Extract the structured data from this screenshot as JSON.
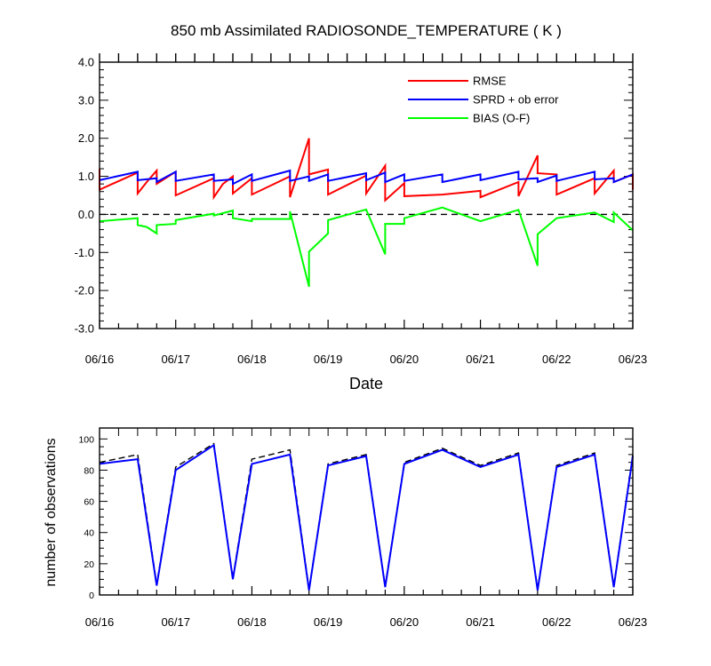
{
  "chart_data": [
    {
      "type": "line",
      "title": "850 mb Assimilated RADIOSONDE_TEMPERATURE ( K )",
      "xlabel": "Date",
      "ylabel": "",
      "xlim": [
        0,
        7
      ],
      "ylim": [
        -3,
        4
      ],
      "x_tick_labels": [
        "06/16",
        "06/17",
        "06/18",
        "06/19",
        "06/20",
        "06/21",
        "06/22",
        "06/23"
      ],
      "y_tick_labels": [
        "4.0",
        "3.0",
        "2.0",
        "1.0",
        "0.0",
        "-1.0",
        "-2.0",
        "-3.0"
      ],
      "legend": {
        "position": "top-right",
        "entries": [
          "RMSE",
          "SPRD + ob error",
          "BIAS (O-F)"
        ]
      },
      "colors": {
        "RMSE": "#ff0000",
        "SPRD": "#0000ff",
        "BIAS": "#00ff00",
        "zero_line": "#000000"
      },
      "series": [
        {
          "name": "RMSE",
          "points": [
            [
              0,
              1.2
            ],
            [
              0,
              0.65
            ],
            [
              0.5,
              1.1
            ],
            [
              0.5,
              0.55
            ],
            [
              0.62,
              0.85
            ],
            [
              0.75,
              1.15
            ],
            [
              0.75,
              0.8
            ],
            [
              1,
              1.12
            ],
            [
              1,
              0.5
            ],
            [
              1.5,
              0.95
            ],
            [
              1.5,
              0.45
            ],
            [
              1.62,
              0.8
            ],
            [
              1.75,
              1.0
            ],
            [
              1.75,
              0.55
            ],
            [
              2,
              0.95
            ],
            [
              2,
              0.52
            ],
            [
              2.5,
              1.0
            ],
            [
              2.5,
              0.45
            ],
            [
              2.75,
              2.0
            ],
            [
              2.75,
              1.05
            ],
            [
              3,
              1.18
            ],
            [
              3,
              0.52
            ],
            [
              3.5,
              1.02
            ],
            [
              3.5,
              0.55
            ],
            [
              3.75,
              1.28
            ],
            [
              3.75,
              0.37
            ],
            [
              4,
              0.82
            ],
            [
              4,
              0.48
            ],
            [
              4.5,
              0.52
            ],
            [
              5,
              0.62
            ],
            [
              5,
              0.45
            ],
            [
              5.5,
              0.85
            ],
            [
              5.5,
              0.48
            ],
            [
              5.75,
              1.55
            ],
            [
              5.75,
              1.08
            ],
            [
              6,
              1.05
            ],
            [
              6,
              0.52
            ],
            [
              6.5,
              0.95
            ],
            [
              6.5,
              0.55
            ],
            [
              6.75,
              1.15
            ],
            [
              6.75,
              0.85
            ],
            [
              7,
              1.05
            ],
            [
              7,
              0.65
            ]
          ]
        },
        {
          "name": "SPRD + ob error",
          "points": [
            [
              0,
              0.9
            ],
            [
              0.5,
              1.12
            ],
            [
              0.5,
              0.9
            ],
            [
              0.75,
              0.95
            ],
            [
              0.75,
              0.85
            ],
            [
              1,
              1.12
            ],
            [
              1,
              0.88
            ],
            [
              1.5,
              1.05
            ],
            [
              1.5,
              0.88
            ],
            [
              1.75,
              0.92
            ],
            [
              1.75,
              0.8
            ],
            [
              2,
              1.05
            ],
            [
              2,
              0.88
            ],
            [
              2.5,
              1.15
            ],
            [
              2.5,
              0.88
            ],
            [
              2.75,
              1.0
            ],
            [
              2.75,
              0.88
            ],
            [
              3,
              1.05
            ],
            [
              3,
              0.88
            ],
            [
              3.5,
              1.08
            ],
            [
              3.5,
              0.9
            ],
            [
              3.75,
              1.1
            ],
            [
              3.75,
              0.85
            ],
            [
              4,
              1.05
            ],
            [
              4,
              0.88
            ],
            [
              4.5,
              1.05
            ],
            [
              4.5,
              0.85
            ],
            [
              5,
              1.05
            ],
            [
              5,
              0.9
            ],
            [
              5.5,
              1.12
            ],
            [
              5.5,
              0.92
            ],
            [
              5.75,
              0.95
            ],
            [
              5.75,
              0.85
            ],
            [
              6,
              1.02
            ],
            [
              6,
              0.88
            ],
            [
              6.5,
              1.12
            ],
            [
              6.5,
              0.92
            ],
            [
              6.75,
              0.95
            ],
            [
              6.75,
              0.85
            ],
            [
              7,
              1.05
            ]
          ]
        },
        {
          "name": "BIAS (O-F)",
          "points": [
            [
              0,
              -0.18
            ],
            [
              0.5,
              -0.1
            ],
            [
              0.5,
              -0.28
            ],
            [
              0.62,
              -0.33
            ],
            [
              0.75,
              -0.5
            ],
            [
              0.75,
              -0.28
            ],
            [
              1,
              -0.25
            ],
            [
              1,
              -0.15
            ],
            [
              1.5,
              0.02
            ],
            [
              1.5,
              -0.03
            ],
            [
              1.75,
              0.1
            ],
            [
              1.75,
              -0.1
            ],
            [
              2,
              -0.18
            ],
            [
              2,
              -0.12
            ],
            [
              2.5,
              -0.12
            ],
            [
              2.5,
              0.08
            ],
            [
              2.75,
              -1.9
            ],
            [
              2.75,
              -0.98
            ],
            [
              3,
              -0.5
            ],
            [
              3,
              -0.15
            ],
            [
              3.5,
              0.13
            ],
            [
              3.75,
              -1.05
            ],
            [
              3.75,
              -0.25
            ],
            [
              4,
              -0.25
            ],
            [
              4,
              -0.1
            ],
            [
              4.5,
              0.18
            ],
            [
              5,
              -0.18
            ],
            [
              5.5,
              0.12
            ],
            [
              5.75,
              -1.35
            ],
            [
              5.75,
              -0.52
            ],
            [
              6,
              -0.1
            ],
            [
              6.5,
              0.05
            ],
            [
              6.75,
              -0.2
            ],
            [
              6.75,
              0.05
            ],
            [
              7,
              -0.42
            ]
          ]
        }
      ],
      "reference_lines": [
        {
          "y": 0,
          "style": "dashed"
        }
      ]
    },
    {
      "type": "line",
      "title": "",
      "xlabel": "",
      "ylabel": "number of observations",
      "xlim": [
        0,
        7
      ],
      "ylim": [
        0,
        107
      ],
      "x_tick_labels": [
        "06/16",
        "06/17",
        "06/18",
        "06/19",
        "06/20",
        "06/21",
        "06/22",
        "06/23"
      ],
      "y_tick_labels": [
        "100",
        "80",
        "60",
        "40",
        "20",
        "0"
      ],
      "colors": {
        "assimilated": "#0000ff",
        "total": "#000000"
      },
      "series": [
        {
          "name": "assimilated",
          "style": "solid",
          "points": [
            [
              0,
              84
            ],
            [
              0.5,
              87
            ],
            [
              0.75,
              6
            ],
            [
              1,
              80
            ],
            [
              1.5,
              96
            ],
            [
              1.75,
              10
            ],
            [
              2,
              84
            ],
            [
              2.5,
              90
            ],
            [
              2.75,
              3
            ],
            [
              3,
              83
            ],
            [
              3.5,
              89
            ],
            [
              3.75,
              5
            ],
            [
              4,
              84
            ],
            [
              4.5,
              93
            ],
            [
              5,
              82
            ],
            [
              5.5,
              90
            ],
            [
              5.75,
              3
            ],
            [
              6,
              82
            ],
            [
              6.5,
              90
            ],
            [
              6.75,
              5
            ],
            [
              7,
              89
            ]
          ]
        },
        {
          "name": "total",
          "style": "dashed",
          "points": [
            [
              0,
              85
            ],
            [
              0.5,
              90
            ],
            [
              0.75,
              7
            ],
            [
              1,
              82
            ],
            [
              1.5,
              97
            ],
            [
              1.75,
              11
            ],
            [
              2,
              87
            ],
            [
              2.5,
              93
            ],
            [
              2.75,
              4
            ],
            [
              3,
              84
            ],
            [
              3.5,
              90
            ],
            [
              3.75,
              6
            ],
            [
              4,
              85
            ],
            [
              4.5,
              94
            ],
            [
              5,
              83
            ],
            [
              5.5,
              91
            ],
            [
              5.75,
              4
            ],
            [
              6,
              83
            ],
            [
              6.5,
              91
            ],
            [
              6.75,
              6
            ],
            [
              7,
              90
            ]
          ]
        }
      ]
    }
  ]
}
